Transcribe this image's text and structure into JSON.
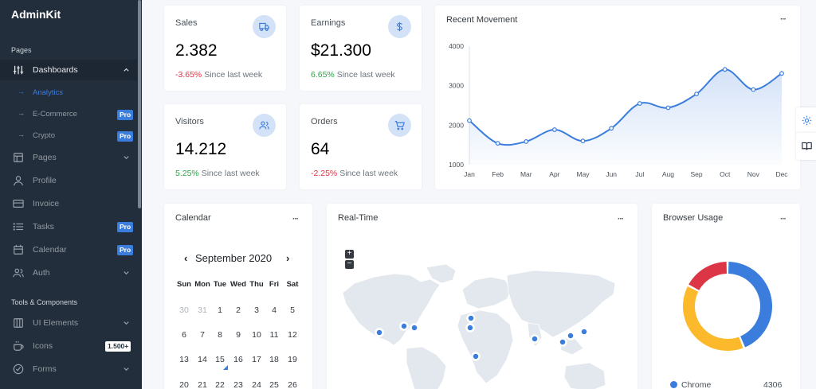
{
  "brand": "AdminKit",
  "sidebar": {
    "section_pages": "Pages",
    "section_tools": "Tools & Components",
    "dashboards": "Dashboards",
    "sub_items": [
      {
        "label": "Analytics"
      },
      {
        "label": "E-Commerce",
        "badge": "Pro"
      },
      {
        "label": "Crypto",
        "badge": "Pro"
      }
    ],
    "items": [
      {
        "label": "Pages"
      },
      {
        "label": "Profile"
      },
      {
        "label": "Invoice"
      },
      {
        "label": "Tasks",
        "badge": "Pro"
      },
      {
        "label": "Calendar",
        "badge": "Pro"
      },
      {
        "label": "Auth"
      }
    ],
    "tools": [
      {
        "label": "UI Elements"
      },
      {
        "label": "Icons",
        "badge": "1.500+"
      },
      {
        "label": "Forms"
      }
    ]
  },
  "stats": {
    "sales": {
      "title": "Sales",
      "value": "2.382",
      "change": "-3.65%",
      "since": "Since last week"
    },
    "earnings": {
      "title": "Earnings",
      "value": "$21.300",
      "change": "6.65%",
      "since": "Since last week"
    },
    "visitors": {
      "title": "Visitors",
      "value": "14.212",
      "change": "5.25%",
      "since": "Since last week"
    },
    "orders": {
      "title": "Orders",
      "value": "64",
      "change": "-2.25%",
      "since": "Since last week"
    }
  },
  "movement": {
    "title": "Recent Movement",
    "menu": "···"
  },
  "chart_data": {
    "type": "area",
    "title": "Recent Movement",
    "categories": [
      "Jan",
      "Feb",
      "Mar",
      "Apr",
      "May",
      "Jun",
      "Jul",
      "Aug",
      "Sep",
      "Oct",
      "Nov",
      "Dec"
    ],
    "series": [
      {
        "values": [
          2115,
          1540,
          1585,
          1885,
          1600,
          1920,
          2550,
          2440,
          2790,
          3410,
          2900,
          3310
        ]
      }
    ],
    "yticks": [
      "4000",
      "3000",
      "2000",
      "1000"
    ],
    "ylim": [
      1000,
      4000
    ],
    "color": "#3b7ddd",
    "grid": false
  },
  "calendar": {
    "title": "Calendar",
    "menu": "···",
    "month": "September 2020",
    "prev": "‹",
    "next": "›",
    "dow": [
      "Sun",
      "Mon",
      "Tue",
      "Wed",
      "Thu",
      "Fri",
      "Sat"
    ],
    "rows": [
      [
        "30",
        "31",
        "1",
        "2",
        "3",
        "4",
        "5"
      ],
      [
        "6",
        "7",
        "8",
        "9",
        "10",
        "11",
        "12"
      ],
      [
        "13",
        "14",
        "15",
        "16",
        "17",
        "18",
        "19"
      ],
      [
        "20",
        "21",
        "22",
        "23",
        "24",
        "25",
        "26"
      ]
    ]
  },
  "realtime": {
    "title": "Real-Time",
    "menu": "···",
    "zoom_in": "+",
    "zoom_out": "−"
  },
  "browser": {
    "title": "Browser Usage",
    "menu": "···",
    "legend_label": "Chrome",
    "legend_value": "4306",
    "slices": [
      {
        "value": 4306,
        "color": "#3b7ddd"
      },
      {
        "value": 3801,
        "color": "#fcb92c"
      },
      {
        "value": 1689,
        "color": "#dc3545"
      }
    ]
  }
}
